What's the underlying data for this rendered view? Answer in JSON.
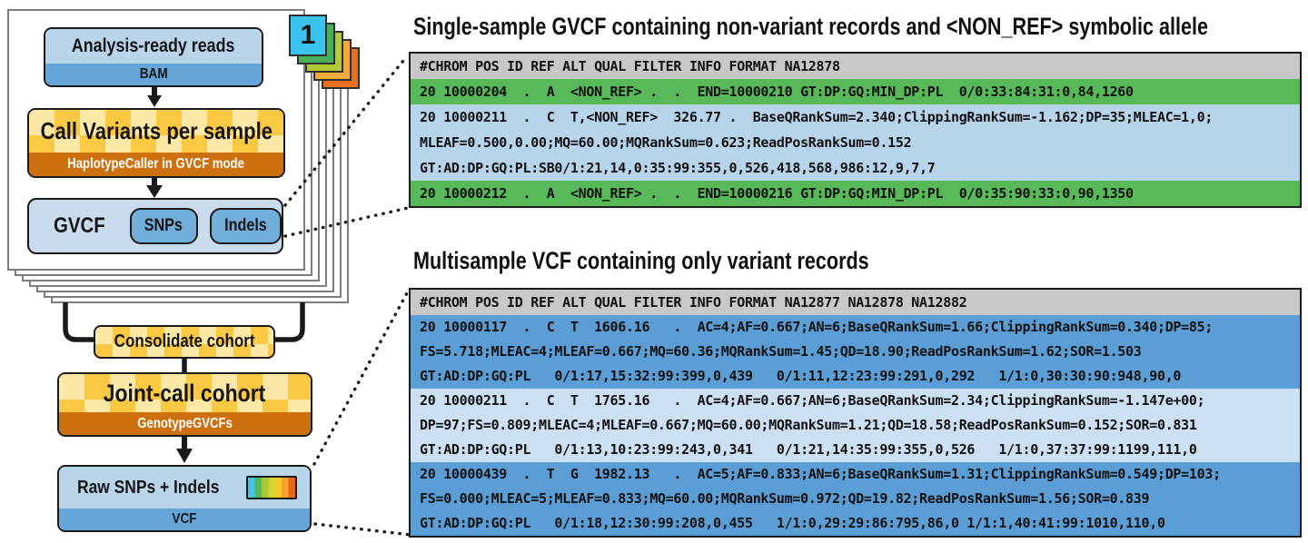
{
  "flowchart": {
    "sample_stack": {
      "page_number": "1",
      "card_colors": [
        "#3ac3ef",
        "#4caf5c",
        "#b5ca39",
        "#f3a93c",
        "#e76f1f"
      ]
    },
    "analysis_box": {
      "title": "Analysis-ready reads",
      "format": "BAM"
    },
    "call_variants_box": {
      "title": "Call Variants per sample",
      "tool": "HaplotypeCaller in GVCF mode"
    },
    "gvcf_box": {
      "label": "GVCF",
      "chips": [
        "SNPs",
        "Indels"
      ]
    },
    "consolidate_box": {
      "title": "Consolidate cohort"
    },
    "joint_call_box": {
      "title": "Joint-call cohort",
      "tool": "GenotypeGVCFs"
    },
    "raw_box": {
      "title": "Raw SNPs + Indels",
      "format": "VCF",
      "stripe_colors": [
        "#45c2ea",
        "#52b85e",
        "#a6c93b",
        "#d3d62e",
        "#f7c928",
        "#f5a329",
        "#e8661f"
      ]
    }
  },
  "panels": [
    {
      "title": "Single-sample GVCF containing non-variant records and <NON_REF> symbolic allele",
      "header": "#CHROM POS ID REF ALT QUAL FILTER INFO FORMAT NA12878",
      "header_color": "#c8c8c8",
      "rows": [
        {
          "type": "non-variant-block",
          "color": "#57b957",
          "lines": [
            "20 10000204  .  A  <NON_REF> .  .  END=10000210 GT:DP:GQ:MIN_DP:PL  0/0:33:84:31:0,84,1260"
          ]
        },
        {
          "type": "variant-site",
          "color": "#b7d5ea",
          "lines": [
            "20 10000211  .  C  T,<NON_REF>  326.77 .  BaseQRankSum=2.340;ClippingRankSum=-1.162;DP=35;MLEAC=1,0;",
            "MLEAF=0.500,0.00;MQ=60.00;MQRankSum=0.623;ReadPosRankSum=0.152",
            "GT:AD:DP:GQ:PL:SB0/1:21,14,0:35:99:355,0,526,418,568,986:12,9,7,7"
          ]
        },
        {
          "type": "non-variant-block",
          "color": "#57b957",
          "lines": [
            "20 10000212  .  A  <NON_REF> .  .  END=10000216 GT:DP:GQ:MIN_DP:PL  0/0:35:90:33:0,90,1350"
          ]
        }
      ]
    },
    {
      "title": "Multisample VCF containing only variant records",
      "header": "#CHROM POS ID REF ALT QUAL FILTER INFO FORMAT NA12877 NA12878 NA12882",
      "header_color": "#c8c8c8",
      "rows": [
        {
          "type": "variant-site",
          "color": "#5b9ed6",
          "lines": [
            "20 10000117  .  C  T  1606.16   .  AC=4;AF=0.667;AN=6;BaseQRankSum=1.66;ClippingRankSum=0.340;DP=85;",
            "FS=5.718;MLEAC=4;MLEAF=0.667;MQ=60.36;MQRankSum=1.45;QD=18.90;ReadPosRankSum=1.62;SOR=1.503",
            "GT:AD:DP:GQ:PL   0/1:17,15:32:99:399,0,439   0/1:11,12:23:99:291,0,292   1/1:0,30:30:90:948,90,0"
          ]
        },
        {
          "type": "variant-site",
          "color": "#cbe0f2",
          "lines": [
            "20 10000211  .  C  T  1765.16   .  AC=4;AF=0.667;AN=6;BaseQRankSum=2.34;ClippingRankSum=-1.147e+00;",
            "DP=97;FS=0.809;MLEAC=4;MLEAF=0.667;MQ=60.00;MQRankSum=1.21;QD=18.58;ReadPosRankSum=0.152;SOR=0.831",
            "GT:AD:DP:GQ:PL   0/1:13,10:23:99:243,0,341   0/1:21,14:35:99:355,0,526   1/1:0,37:37:99:1199,111,0"
          ]
        },
        {
          "type": "variant-site",
          "color": "#5b9ed6",
          "lines": [
            "20 10000439  .  T  G  1982.13   .  AC=5;AF=0.833;AN=6;BaseQRankSum=1.31;ClippingRankSum=0.549;DP=103;",
            "FS=0.000;MLEAC=5;MLEAF=0.833;MQ=60.00;MQRankSum=0.972;QD=19.82;ReadPosRankSum=1.56;SOR=0.839",
            "GT:AD:DP:GQ:PL   0/1:18,12:30:99:208,0,455   1/1:0,29:29:86:795,86,0 1/1:1,40:41:99:1010,110,0"
          ]
        }
      ]
    }
  ],
  "colors": {
    "non_variant_green": "#57b957",
    "gvcf_variant_blue": "#b7d5ea",
    "vcf_variant_blue": "#5b9ed6",
    "vcf_variant_light_blue": "#cbe0f2",
    "table_header_gray": "#c8c8c8",
    "box_light_blue": "#b9d5ea",
    "box_blue_strip": "#66a5d8",
    "box_gold": "#fbc843",
    "box_cream": "#fde8a6",
    "box_orange_strip": "#cd7110"
  }
}
